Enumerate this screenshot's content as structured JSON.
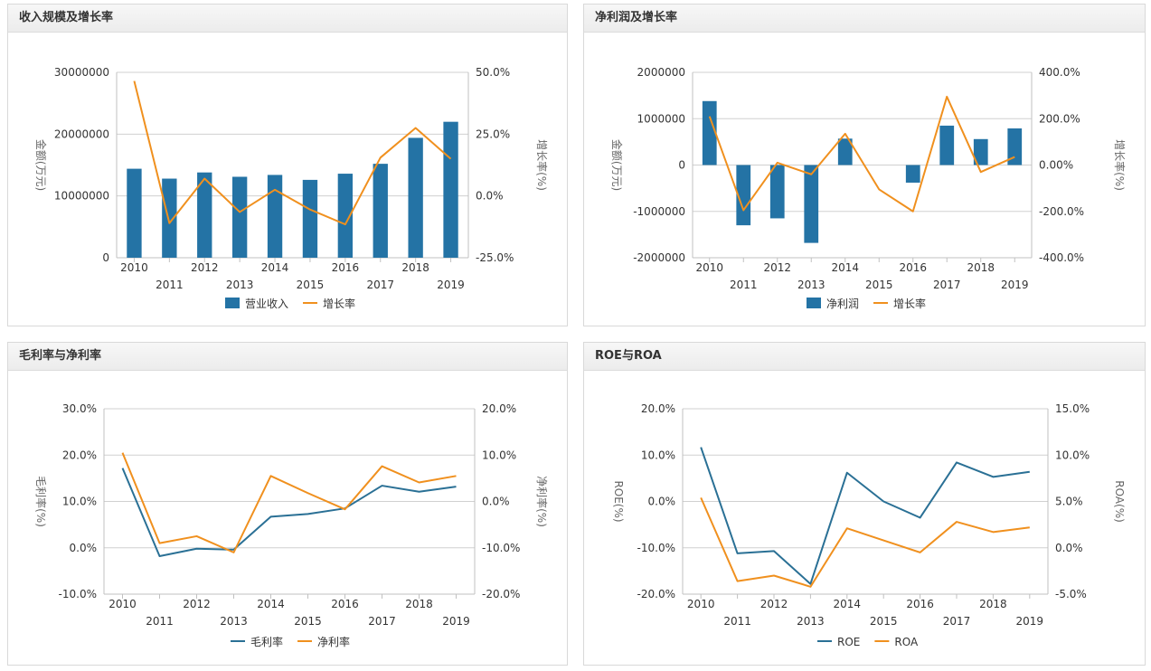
{
  "colors": {
    "bar": "#2473a5",
    "line_blue": "#2a7095",
    "line_orange": "#f0901e",
    "grid": "#d0d0d0"
  },
  "chart_data": [
    {
      "id": "revenue",
      "type": "bar",
      "title": "收入规模及增长率",
      "categories": [
        "2010",
        "2011",
        "2012",
        "2013",
        "2014",
        "2015",
        "2016",
        "2017",
        "2018",
        "2019"
      ],
      "series": [
        {
          "name": "营业收入",
          "type": "bar",
          "axis": "left",
          "color": "#2473a5",
          "values": [
            14400000,
            12800000,
            13800000,
            13100000,
            13400000,
            12600000,
            13600000,
            15200000,
            19400000,
            22000000
          ]
        },
        {
          "name": "增长率",
          "type": "line",
          "axis": "right",
          "color": "#f0901e",
          "values": [
            46.5,
            -11.0,
            7.0,
            -6.5,
            2.5,
            -5.5,
            -11.5,
            15.5,
            27.5,
            15.0
          ]
        }
      ],
      "ylabel": "金额(万元)",
      "ylabel_right": "增长率(%)",
      "ylim": [
        0,
        30000000
      ],
      "yticks": [
        "0",
        "10000000",
        "20000000",
        "30000000"
      ],
      "ylim_right": [
        -25,
        50
      ],
      "yticks_right": [
        "-25.0%",
        "0.0%",
        "25.0%",
        "50.0%"
      ],
      "legend_position": "bottom"
    },
    {
      "id": "profit",
      "type": "bar",
      "title": "净利润及增长率",
      "categories": [
        "2010",
        "2011",
        "2012",
        "2013",
        "2014",
        "2015",
        "2016",
        "2017",
        "2018",
        "2019"
      ],
      "series": [
        {
          "name": "净利润",
          "type": "bar",
          "axis": "left",
          "color": "#2473a5",
          "values": [
            1380000,
            -1300000,
            -1150000,
            -1680000,
            570000,
            0,
            -380000,
            850000,
            560000,
            790000
          ]
        },
        {
          "name": "增长率",
          "type": "line",
          "axis": "right",
          "color": "#f0901e",
          "values": [
            210,
            -195,
            10,
            -40,
            135,
            -105,
            -200,
            295,
            -30,
            35
          ]
        }
      ],
      "ylabel": "金额(万元)",
      "ylabel_right": "增长率(%)",
      "ylim": [
        -2000000,
        2000000
      ],
      "yticks": [
        "-2000000",
        "-1000000",
        "0",
        "1000000",
        "2000000"
      ],
      "ylim_right": [
        -400,
        400
      ],
      "yticks_right": [
        "-400.0%",
        "-200.0%",
        "0.00%",
        "200.0%",
        "400.0%"
      ],
      "legend_position": "bottom"
    },
    {
      "id": "margins",
      "type": "line",
      "title": "毛利率与净利率",
      "categories": [
        "2010",
        "2011",
        "2012",
        "2013",
        "2014",
        "2015",
        "2016",
        "2017",
        "2018",
        "2019"
      ],
      "series": [
        {
          "name": "毛利率",
          "type": "line",
          "axis": "left",
          "color": "#2a7095",
          "values": [
            17.2,
            -1.8,
            -0.2,
            -0.4,
            6.7,
            7.3,
            8.5,
            13.4,
            12.1,
            13.2
          ]
        },
        {
          "name": "净利率",
          "type": "line",
          "axis": "right",
          "color": "#f0901e",
          "values": [
            10.5,
            -9.0,
            -7.5,
            -11.0,
            5.5,
            1.8,
            -1.7,
            7.6,
            4.1,
            5.5
          ]
        }
      ],
      "ylabel": "毛利率(%)",
      "ylabel_right": "净利率(%)",
      "ylim": [
        -10,
        30
      ],
      "yticks": [
        "-10.0%",
        "0.0%",
        "10.0%",
        "20.0%",
        "30.0%"
      ],
      "ylim_right": [
        -20,
        20
      ],
      "yticks_right": [
        "-20.0%",
        "-10.0%",
        "0.0%",
        "10.0%",
        "20.0%"
      ],
      "legend_position": "bottom"
    },
    {
      "id": "roe-roa",
      "type": "line",
      "title": "ROE与ROA",
      "categories": [
        "2010",
        "2011",
        "2012",
        "2013",
        "2014",
        "2015",
        "2016",
        "2017",
        "2018",
        "2019"
      ],
      "series": [
        {
          "name": "ROE",
          "type": "line",
          "axis": "left",
          "color": "#2a7095",
          "values": [
            11.7,
            -11.2,
            -10.7,
            -17.8,
            6.2,
            0.0,
            -3.5,
            8.4,
            5.3,
            6.4
          ]
        },
        {
          "name": "ROA",
          "type": "line",
          "axis": "right",
          "color": "#f0901e",
          "values": [
            5.4,
            -3.6,
            -3.0,
            -4.2,
            2.1,
            0.8,
            -0.5,
            2.8,
            1.7,
            2.2
          ]
        }
      ],
      "ylabel": "ROE(%)",
      "ylabel_right": "ROA(%)",
      "ylim": [
        -20,
        20
      ],
      "yticks": [
        "-20.0%",
        "-10.0%",
        "0.0%",
        "10.0%",
        "20.0%"
      ],
      "ylim_right": [
        -5,
        15
      ],
      "yticks_right": [
        "-5.0%",
        "0.0%",
        "5.0%",
        "10.0%",
        "15.0%"
      ],
      "legend_position": "bottom"
    }
  ]
}
